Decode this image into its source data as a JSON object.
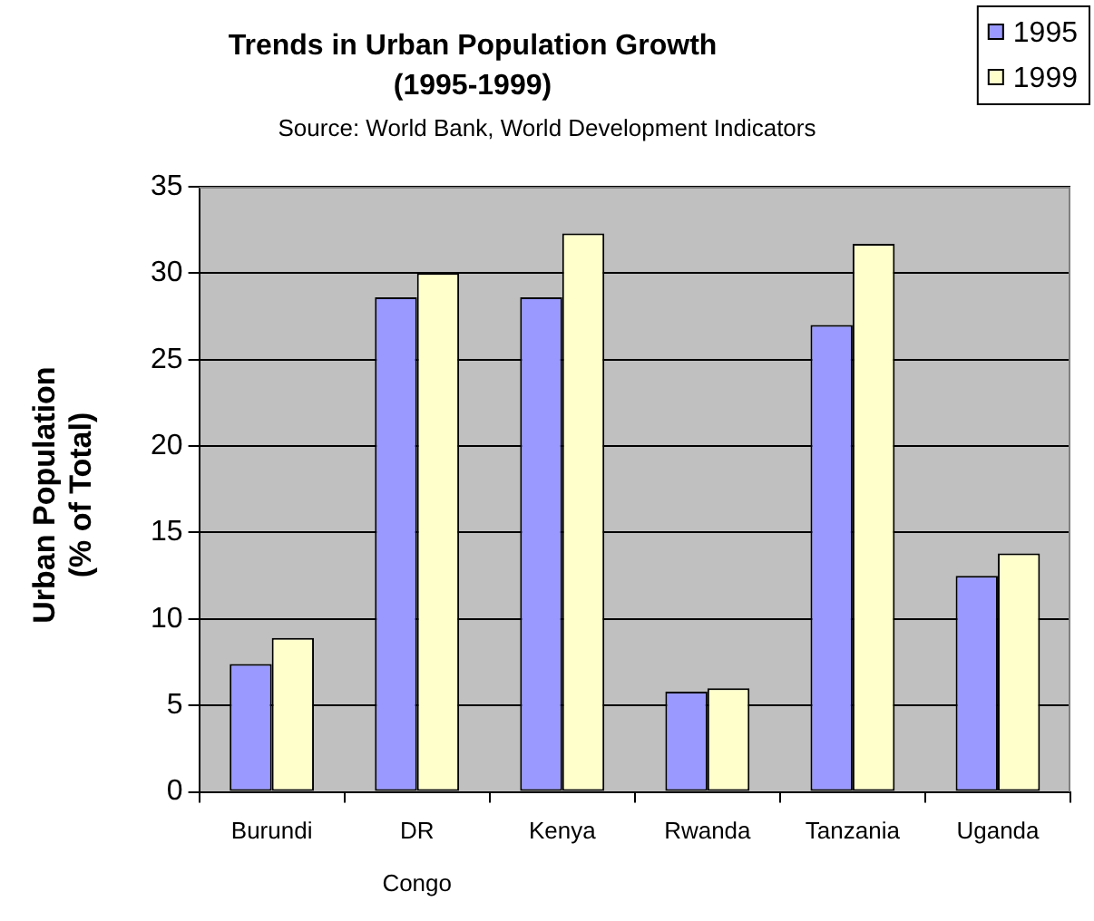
{
  "chart_data": {
    "type": "bar",
    "title": "Trends in Urban Population Growth (1995-1999)",
    "annotations": [
      "Source: World Bank, World Development Indicators"
    ],
    "ylabel": "Urban Population (% of Total)",
    "categories": [
      "Burundi",
      "DR Congo",
      "Kenya",
      "Rwanda",
      "Tanzania",
      "Uganda"
    ],
    "series": [
      {
        "name": "1995",
        "color": "#9999ff",
        "values": [
          7.4,
          28.6,
          28.6,
          5.8,
          27.0,
          12.5
        ]
      },
      {
        "name": "1999",
        "color": "#ffffcc",
        "values": [
          8.9,
          30.0,
          32.3,
          6.0,
          31.7,
          13.8
        ]
      }
    ],
    "ylim": [
      0,
      35
    ],
    "yticks": [
      0,
      5,
      10,
      15,
      20,
      25,
      30,
      35
    ],
    "grid": "y",
    "legend": "top right"
  }
}
